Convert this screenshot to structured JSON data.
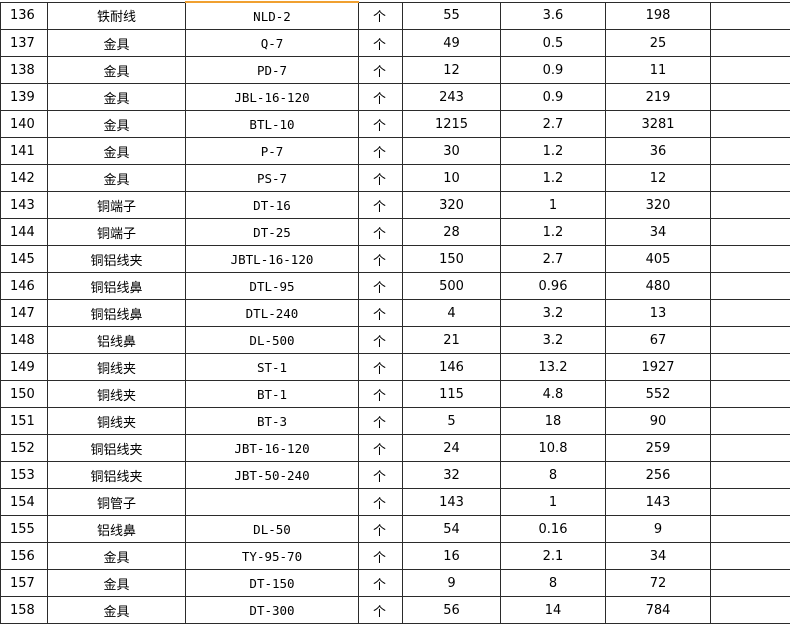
{
  "table": {
    "rows": [
      [
        "136",
        "铁耐线",
        "NLD-2",
        "个",
        "55",
        "3.6",
        "198"
      ],
      [
        "137",
        "金具",
        "Q-7",
        "个",
        "49",
        "0.5",
        "25"
      ],
      [
        "138",
        "金具",
        "PD-7",
        "个",
        "12",
        "0.9",
        "11"
      ],
      [
        "139",
        "金具",
        "JBL-16-120",
        "个",
        "243",
        "0.9",
        "219"
      ],
      [
        "140",
        "金具",
        "BTL-10",
        "个",
        "1215",
        "2.7",
        "3281"
      ],
      [
        "141",
        "金具",
        "P-7",
        "个",
        "30",
        "1.2",
        "36"
      ],
      [
        "142",
        "金具",
        "PS-7",
        "个",
        "10",
        "1.2",
        "12"
      ],
      [
        "143",
        "铜端子",
        "DT-16",
        "个",
        "320",
        "1",
        "320"
      ],
      [
        "144",
        "铜端子",
        "DT-25",
        "个",
        "28",
        "1.2",
        "34"
      ],
      [
        "145",
        "铜铝线夹",
        "JBTL-16-120",
        "个",
        "150",
        "2.7",
        "405"
      ],
      [
        "146",
        "铜铝线鼻",
        "DTL-95",
        "个",
        "500",
        "0.96",
        "480"
      ],
      [
        "147",
        "铜铝线鼻",
        "DTL-240",
        "个",
        "4",
        "3.2",
        "13"
      ],
      [
        "148",
        "铝线鼻",
        "DL-500",
        "个",
        "21",
        "3.2",
        "67"
      ],
      [
        "149",
        "铜线夹",
        "ST-1",
        "个",
        "146",
        "13.2",
        "1927"
      ],
      [
        "150",
        "铜线夹",
        "BT-1",
        "个",
        "115",
        "4.8",
        "552"
      ],
      [
        "151",
        "铜线夹",
        "BT-3",
        "个",
        "5",
        "18",
        "90"
      ],
      [
        "152",
        "铜铝线夹",
        "JBT-16-120",
        "个",
        "24",
        "10.8",
        "259"
      ],
      [
        "153",
        "铜铝线夹",
        "JBT-50-240",
        "个",
        "32",
        "8",
        "256"
      ],
      [
        "154",
        "铜管子",
        null,
        "个",
        "143",
        "1",
        "143"
      ],
      [
        "155",
        "铝线鼻",
        "DL-50",
        "个",
        "54",
        "0.16",
        "9"
      ],
      [
        "156",
        "金具",
        "TY-95-70",
        "个",
        "16",
        "2.1",
        "34"
      ],
      [
        "157",
        "金具",
        "DT-150",
        "个",
        "9",
        "8",
        "72"
      ],
      [
        "158",
        "金具",
        "DT-300",
        "个",
        "56",
        "14",
        "784"
      ]
    ]
  }
}
